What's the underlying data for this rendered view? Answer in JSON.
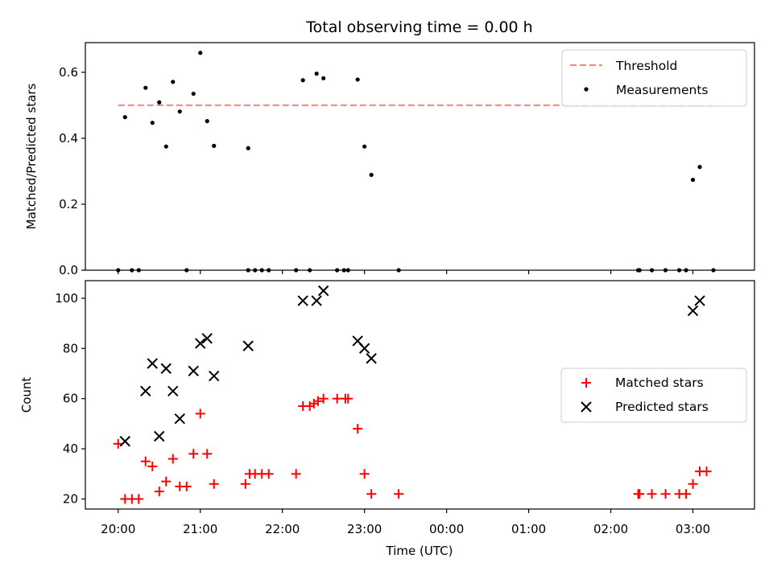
{
  "chart_data": [
    {
      "type": "scatter",
      "title": "Total observing time = 0.00 h",
      "xlabel": "",
      "ylabel": "Matched/Predicted stars",
      "xlim": [
        "19:36",
        "03:45"
      ],
      "ylim": [
        0,
        0.69
      ],
      "yticks": [
        "0.0",
        "0.2",
        "0.4",
        "0.6"
      ],
      "x_ticks": [
        "20:00",
        "21:00",
        "22:00",
        "23:00",
        "00:00",
        "01:00",
        "02:00",
        "03:00"
      ],
      "grid": false,
      "legend": {
        "placement": "top-right",
        "entries": [
          "Threshold",
          "Measurements"
        ]
      },
      "threshold": {
        "name": "Threshold",
        "value": 0.5,
        "x": [
          "20:00",
          "03:15"
        ],
        "color": "#ff7f7f",
        "style": "dashed"
      },
      "series": [
        {
          "name": "Measurements",
          "color": "#000000",
          "marker": "dot",
          "points": [
            {
              "x": "20:00",
              "y": 0.0
            },
            {
              "x": "20:05",
              "y": 0.464
            },
            {
              "x": "20:10",
              "y": 0.0
            },
            {
              "x": "20:15",
              "y": 0.0
            },
            {
              "x": "20:20",
              "y": 0.553
            },
            {
              "x": "20:25",
              "y": 0.447
            },
            {
              "x": "20:30",
              "y": 0.509
            },
            {
              "x": "20:35",
              "y": 0.375
            },
            {
              "x": "20:40",
              "y": 0.571
            },
            {
              "x": "20:45",
              "y": 0.481
            },
            {
              "x": "20:50",
              "y": 0.0
            },
            {
              "x": "20:55",
              "y": 0.535
            },
            {
              "x": "21:00",
              "y": 0.659
            },
            {
              "x": "21:05",
              "y": 0.452
            },
            {
              "x": "21:10",
              "y": 0.377
            },
            {
              "x": "21:35",
              "y": 0.37
            },
            {
              "x": "21:35",
              "y": 0.0
            },
            {
              "x": "21:40",
              "y": 0.0
            },
            {
              "x": "21:45",
              "y": 0.0
            },
            {
              "x": "21:50",
              "y": 0.0
            },
            {
              "x": "22:10",
              "y": 0.0
            },
            {
              "x": "22:15",
              "y": 0.576
            },
            {
              "x": "22:20",
              "y": 0.0
            },
            {
              "x": "22:25",
              "y": 0.596
            },
            {
              "x": "22:30",
              "y": 0.582
            },
            {
              "x": "22:40",
              "y": 0.0
            },
            {
              "x": "22:45",
              "y": 0.0
            },
            {
              "x": "22:48",
              "y": 0.0
            },
            {
              "x": "22:55",
              "y": 0.578
            },
            {
              "x": "23:00",
              "y": 0.375
            },
            {
              "x": "23:05",
              "y": 0.289
            },
            {
              "x": "23:25",
              "y": 0.0
            },
            {
              "x": "02:20",
              "y": 0.0
            },
            {
              "x": "02:21",
              "y": 0.0
            },
            {
              "x": "02:30",
              "y": 0.0
            },
            {
              "x": "02:40",
              "y": 0.0
            },
            {
              "x": "02:50",
              "y": 0.0
            },
            {
              "x": "02:55",
              "y": 0.0
            },
            {
              "x": "03:00",
              "y": 0.274
            },
            {
              "x": "03:05",
              "y": 0.313
            },
            {
              "x": "03:15",
              "y": 0.0
            }
          ]
        }
      ]
    },
    {
      "type": "scatter",
      "title": "",
      "xlabel": "Time (UTC)",
      "ylabel": "Count",
      "xlim": [
        "19:36",
        "03:45"
      ],
      "ylim": [
        16,
        107
      ],
      "yticks": [
        "20",
        "40",
        "60",
        "80",
        "100"
      ],
      "x_ticks": [
        "20:00",
        "21:00",
        "22:00",
        "23:00",
        "00:00",
        "01:00",
        "02:00",
        "03:00"
      ],
      "grid": false,
      "legend": {
        "placement": "center-right",
        "entries": [
          "Matched stars",
          "Predicted stars"
        ]
      },
      "series": [
        {
          "name": "Matched stars",
          "color": "#ff0000",
          "marker": "plus",
          "points": [
            {
              "x": "20:00",
              "y": 42
            },
            {
              "x": "20:05",
              "y": 20
            },
            {
              "x": "20:10",
              "y": 20
            },
            {
              "x": "20:15",
              "y": 20
            },
            {
              "x": "20:20",
              "y": 35
            },
            {
              "x": "20:25",
              "y": 33
            },
            {
              "x": "20:30",
              "y": 23
            },
            {
              "x": "20:35",
              "y": 27
            },
            {
              "x": "20:40",
              "y": 36
            },
            {
              "x": "20:45",
              "y": 25
            },
            {
              "x": "20:50",
              "y": 25
            },
            {
              "x": "20:55",
              "y": 38
            },
            {
              "x": "21:00",
              "y": 54
            },
            {
              "x": "21:05",
              "y": 38
            },
            {
              "x": "21:10",
              "y": 26
            },
            {
              "x": "21:33",
              "y": 26
            },
            {
              "x": "21:36",
              "y": 30
            },
            {
              "x": "21:40",
              "y": 30
            },
            {
              "x": "21:45",
              "y": 30
            },
            {
              "x": "21:50",
              "y": 30
            },
            {
              "x": "22:10",
              "y": 30
            },
            {
              "x": "22:15",
              "y": 57
            },
            {
              "x": "22:20",
              "y": 57
            },
            {
              "x": "22:23",
              "y": 58
            },
            {
              "x": "22:26",
              "y": 59
            },
            {
              "x": "22:30",
              "y": 60
            },
            {
              "x": "22:40",
              "y": 60
            },
            {
              "x": "22:46",
              "y": 60
            },
            {
              "x": "22:48",
              "y": 60
            },
            {
              "x": "22:55",
              "y": 48
            },
            {
              "x": "23:00",
              "y": 30
            },
            {
              "x": "23:05",
              "y": 22
            },
            {
              "x": "23:25",
              "y": 22
            },
            {
              "x": "02:20",
              "y": 22
            },
            {
              "x": "02:21",
              "y": 22
            },
            {
              "x": "02:30",
              "y": 22
            },
            {
              "x": "02:40",
              "y": 22
            },
            {
              "x": "02:50",
              "y": 22
            },
            {
              "x": "02:55",
              "y": 22
            },
            {
              "x": "03:00",
              "y": 26
            },
            {
              "x": "03:05",
              "y": 31
            },
            {
              "x": "03:10",
              "y": 31
            }
          ]
        },
        {
          "name": "Predicted stars",
          "color": "#000000",
          "marker": "x",
          "points": [
            {
              "x": "20:05",
              "y": 43
            },
            {
              "x": "20:20",
              "y": 63
            },
            {
              "x": "20:25",
              "y": 74
            },
            {
              "x": "20:30",
              "y": 45
            },
            {
              "x": "20:35",
              "y": 72
            },
            {
              "x": "20:40",
              "y": 63
            },
            {
              "x": "20:45",
              "y": 52
            },
            {
              "x": "20:55",
              "y": 71
            },
            {
              "x": "21:00",
              "y": 82
            },
            {
              "x": "21:05",
              "y": 84
            },
            {
              "x": "21:10",
              "y": 69
            },
            {
              "x": "21:35",
              "y": 81
            },
            {
              "x": "22:15",
              "y": 99
            },
            {
              "x": "22:25",
              "y": 99
            },
            {
              "x": "22:30",
              "y": 103
            },
            {
              "x": "22:55",
              "y": 83
            },
            {
              "x": "23:00",
              "y": 80
            },
            {
              "x": "23:05",
              "y": 76
            },
            {
              "x": "03:00",
              "y": 95
            },
            {
              "x": "03:05",
              "y": 99
            }
          ]
        }
      ]
    }
  ]
}
